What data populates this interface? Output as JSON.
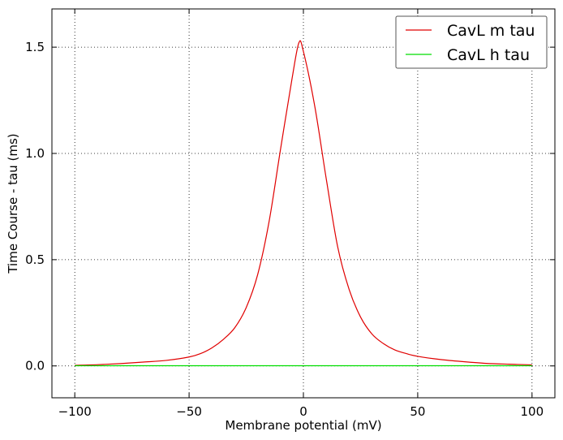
{
  "chart_data": {
    "type": "line",
    "xlabel": "Membrane potential (mV)",
    "ylabel": "Time Course - tau (ms)",
    "xlim": [
      -110,
      110
    ],
    "ylim": [
      -0.15,
      1.68
    ],
    "xticks": [
      -100,
      -50,
      0,
      50,
      100
    ],
    "yticks": [
      0.0,
      0.5,
      1.0,
      1.5
    ],
    "xtick_labels": [
      "−100",
      "−50",
      "0",
      "50",
      "100"
    ],
    "ytick_labels": [
      "0.0",
      "0.5",
      "1.0",
      "1.5"
    ],
    "grid": true,
    "legend_position": "top-right",
    "series": [
      {
        "name": "CavL m tau",
        "color": "#e00000",
        "x": [
          -100,
          -90,
          -80,
          -70,
          -60,
          -50,
          -45,
          -40,
          -35,
          -30,
          -25,
          -20,
          -15,
          -10,
          -5,
          -2,
          0,
          5,
          10,
          15,
          20,
          25,
          30,
          35,
          40,
          45,
          50,
          60,
          70,
          80,
          90,
          100
        ],
        "y": [
          0.003,
          0.006,
          0.011,
          0.018,
          0.026,
          0.042,
          0.058,
          0.085,
          0.125,
          0.18,
          0.275,
          0.43,
          0.68,
          1.02,
          1.35,
          1.52,
          1.48,
          1.22,
          0.88,
          0.56,
          0.36,
          0.23,
          0.15,
          0.105,
          0.075,
          0.058,
          0.045,
          0.03,
          0.02,
          0.012,
          0.008,
          0.005
        ]
      },
      {
        "name": "CavL h tau",
        "color": "#00dd00",
        "x": [
          -100,
          100
        ],
        "y": [
          0.001,
          0.001
        ]
      }
    ]
  }
}
